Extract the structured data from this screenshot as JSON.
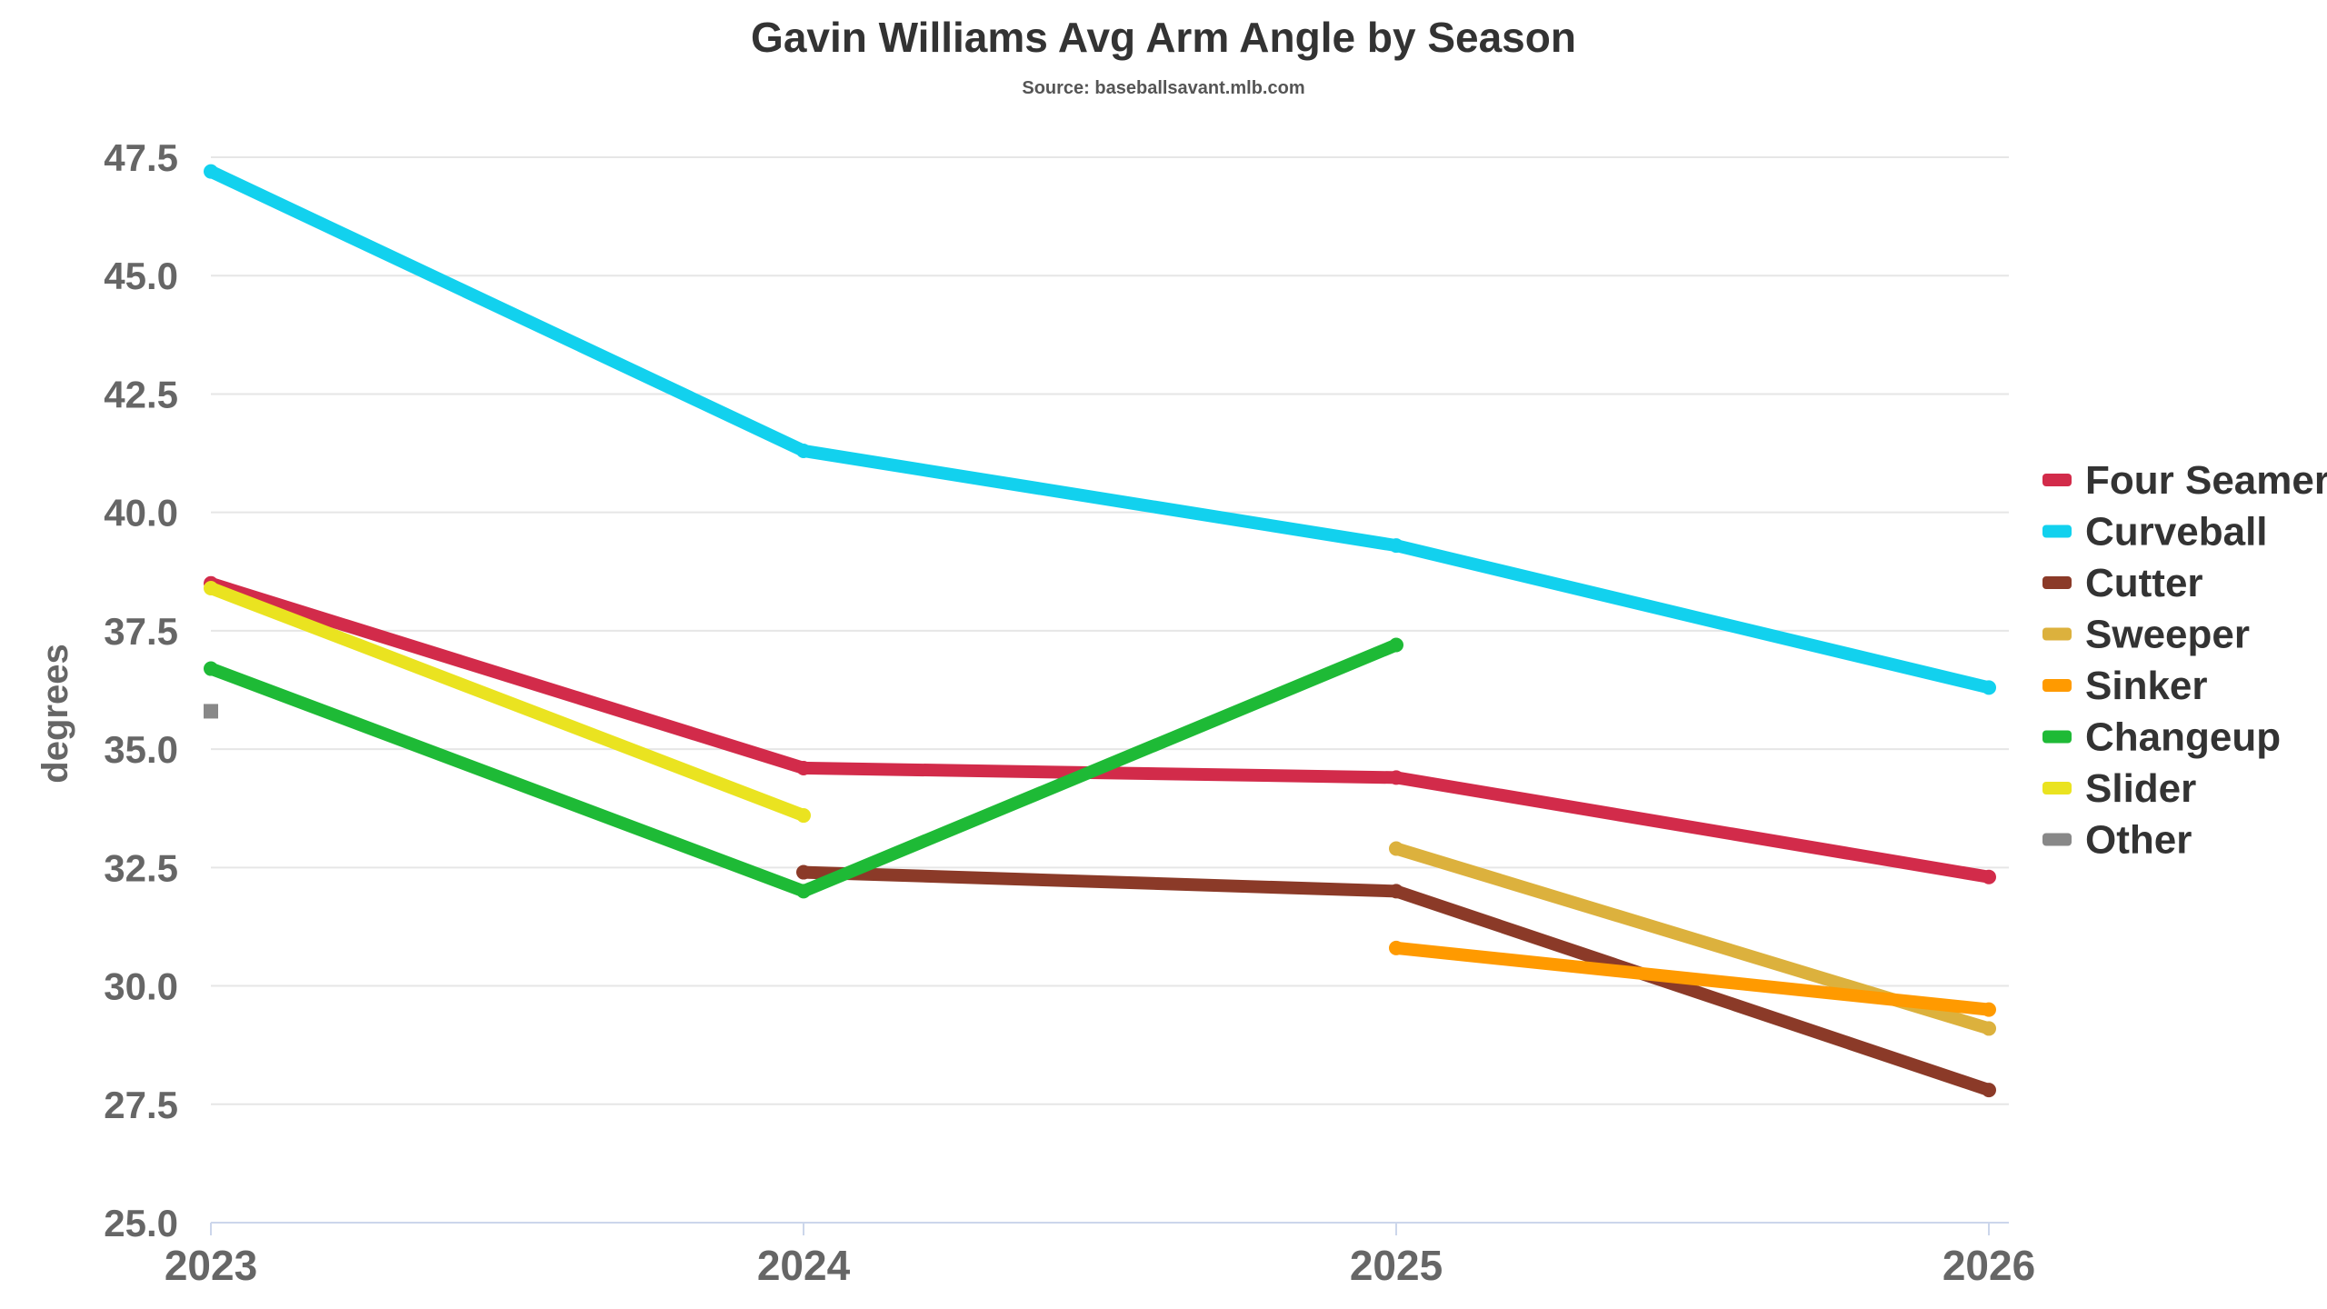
{
  "chart_data": {
    "type": "line",
    "title": "Gavin Williams Avg Arm Angle by Season",
    "subtitle": "Source: baseballsavant.mlb.com",
    "xlabel": "",
    "ylabel": "degrees",
    "x": [
      2023,
      2024,
      2025,
      2026
    ],
    "x_tick_labels": [
      "2023",
      "2024",
      "2025",
      "2026"
    ],
    "ylim": [
      25.0,
      47.5
    ],
    "y_ticks": [
      25.0,
      27.5,
      30.0,
      32.5,
      35.0,
      37.5,
      40.0,
      42.5,
      45.0,
      47.5
    ],
    "y_tick_labels": [
      "25.0",
      "27.5",
      "30.0",
      "32.5",
      "35.0",
      "37.5",
      "40.0",
      "42.5",
      "45.0",
      "47.5"
    ],
    "grid": true,
    "legend_position": "right",
    "series": [
      {
        "name": "Four Seamer",
        "color": "#d22b4a",
        "values": [
          38.5,
          34.6,
          34.4,
          32.3
        ]
      },
      {
        "name": "Curveball",
        "color": "#12d1ee",
        "values": [
          47.2,
          41.3,
          39.3,
          36.3
        ]
      },
      {
        "name": "Cutter",
        "color": "#8b3a28",
        "values": [
          null,
          32.4,
          32.0,
          27.8
        ]
      },
      {
        "name": "Sweeper",
        "color": "#dcb13d",
        "values": [
          null,
          null,
          32.9,
          29.1
        ]
      },
      {
        "name": "Sinker",
        "color": "#ff9a00",
        "values": [
          null,
          null,
          30.8,
          29.5
        ]
      },
      {
        "name": "Changeup",
        "color": "#1eba36",
        "values": [
          36.7,
          32.0,
          37.2,
          null
        ]
      },
      {
        "name": "Slider",
        "color": "#eae320",
        "values": [
          38.4,
          33.6,
          null,
          null
        ]
      },
      {
        "name": "Other",
        "color": "#888888",
        "values": [
          35.8,
          null,
          null,
          null
        ]
      }
    ]
  }
}
